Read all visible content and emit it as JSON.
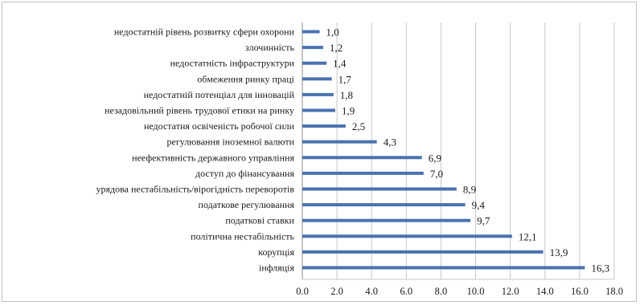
{
  "chart_data": {
    "type": "bar",
    "orientation": "horizontal",
    "categories": [
      "недостатній рівень розвитку сфери охорони",
      "злочинність",
      "недостатність інфраструктури",
      "обмеження ринку праці",
      "недостатній потенціал для інновацій",
      "незадовільний рівень трудової етики на ринку",
      "недостатня освіченість робочої сили",
      "регулювання іноземної валюти",
      "неефективність державного управління",
      "доступ до фінансування",
      "урядова нестабільність/вірогідність переворотів",
      "податкове регулювання",
      "податкові ставки",
      "політична нестабільність",
      "корупція",
      "інфляція"
    ],
    "values": [
      1.0,
      1.2,
      1.4,
      1.7,
      1.8,
      1.9,
      2.5,
      4.3,
      6.9,
      7.0,
      8.9,
      9.4,
      9.7,
      12.1,
      13.9,
      16.3
    ],
    "value_labels": [
      "1,0",
      "1,2",
      "1,4",
      "1,7",
      "1,8",
      "1,9",
      "2,5",
      "4,3",
      "6,9",
      "7,0",
      "8,9",
      "9,4",
      "9,7",
      "12,1",
      "13,9",
      "16,3"
    ],
    "x_ticks": [
      "0.0",
      "2.0",
      "4.0",
      "6.0",
      "8.0",
      "10.0",
      "12.0",
      "14.0",
      "16.0",
      "18.0"
    ],
    "xlim": [
      0,
      18
    ],
    "grid": "vertical",
    "legend": "none",
    "bar_color": "#4a72b0"
  }
}
